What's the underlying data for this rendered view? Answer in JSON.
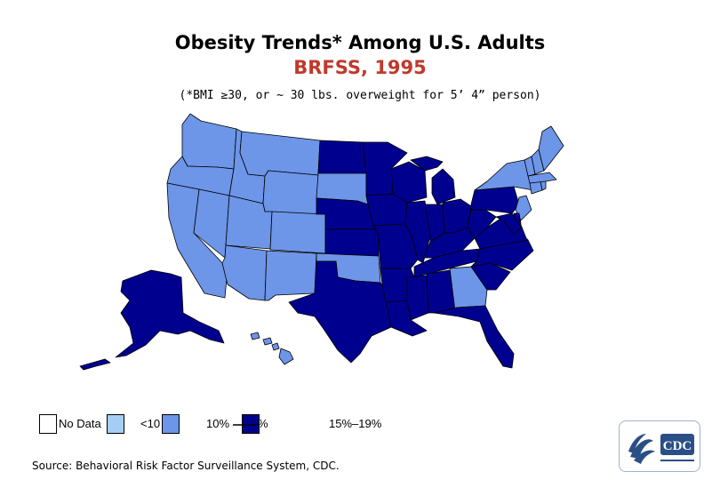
{
  "title": "Obesity Trends* Among U.S. Adults",
  "subtitle": "BRFSS, 1995",
  "footnote": "(*BMI ≥30, or ~ 30 lbs. overweight for 5’ 4” person)",
  "colors": {
    "no_data": "#ffffff",
    "lt10": "#a6cef5",
    "10_14": "#6d95e8",
    "15_19": "#00008f",
    "border": "#000000",
    "subtitle": "#c0392b"
  },
  "legend": [
    {
      "label": "No Data",
      "key": "no_data"
    },
    {
      "label": "<10",
      "key": "lt10"
    },
    {
      "label": "10%",
      "key": "10_14"
    },
    {
      "label": "%",
      "key": "15_19"
    },
    {
      "label": "15%–19%",
      "key": "15_19"
    }
  ],
  "source": "Source: Behavioral Risk Factor Surveillance System, CDC.",
  "logo_text": "CDC",
  "states": {
    "WA": "10_14",
    "OR": "10_14",
    "CA": "10_14",
    "NV": "10_14",
    "ID": "10_14",
    "MT": "10_14",
    "WY": "10_14",
    "UT": "10_14",
    "AZ": "10_14",
    "CO": "10_14",
    "NM": "10_14",
    "ND": "15_19",
    "SD": "10_14",
    "NE": "15_19",
    "KS": "15_19",
    "OK": "10_14",
    "TX": "15_19",
    "MN": "15_19",
    "IA": "15_19",
    "MO": "15_19",
    "AR": "15_19",
    "LA": "15_19",
    "WI": "15_19",
    "IL": "15_19",
    "MI": "15_19",
    "IN": "15_19",
    "OH": "15_19",
    "KY": "15_19",
    "TN": "15_19",
    "MS": "15_19",
    "AL": "15_19",
    "GA": "10_14",
    "FL": "15_19",
    "SC": "15_19",
    "NC": "15_19",
    "VA": "15_19",
    "WV": "15_19",
    "PA": "15_19",
    "NY": "10_14",
    "VT": "10_14",
    "NH": "10_14",
    "ME": "10_14",
    "MA": "10_14",
    "CT": "10_14",
    "RI": "10_14",
    "NJ": "10_14",
    "DE": "15_19",
    "MD": "15_19",
    "AK": "15_19",
    "HI": "10_14"
  }
}
